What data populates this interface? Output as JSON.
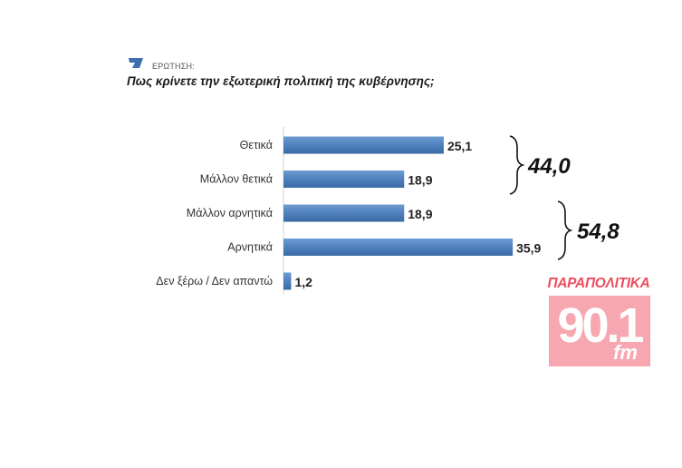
{
  "header": {
    "question_label": "ΕΡΩΤΗΣΗ:",
    "question_text": "Πως κρίνετε την εξωτερική πολιτική της κυβέρνησης;"
  },
  "chart_data": {
    "type": "bar",
    "orientation": "horizontal",
    "title": "Πως κρίνετε την εξωτερική πολιτική της κυβέρνησης;",
    "categories": [
      "Θετικά",
      "Μάλλον θετικά",
      "Μάλλον αρνητικά",
      "Αρνητικά",
      "Δεν ξέρω / Δεν απαντώ"
    ],
    "values": [
      25.1,
      18.9,
      18.9,
      35.9,
      1.2
    ],
    "value_labels": [
      "25,1",
      "18,9",
      "18,9",
      "35,9",
      "1,2"
    ],
    "xlim": [
      0,
      40
    ],
    "bar_color": "#4f81bd",
    "groups": [
      {
        "label": "44,0",
        "categories": [
          "Θετικά",
          "Μάλλον θετικά"
        ]
      },
      {
        "label": "54,8",
        "categories": [
          "Μάλλον αρνητικά",
          "Αρνητικά"
        ]
      }
    ]
  },
  "logo": {
    "top_text": "ΠΑΡΑΠΟΛΙΤΙΚΑ",
    "number": "90.1",
    "suffix": "fm",
    "color": "#ec4e5e"
  }
}
